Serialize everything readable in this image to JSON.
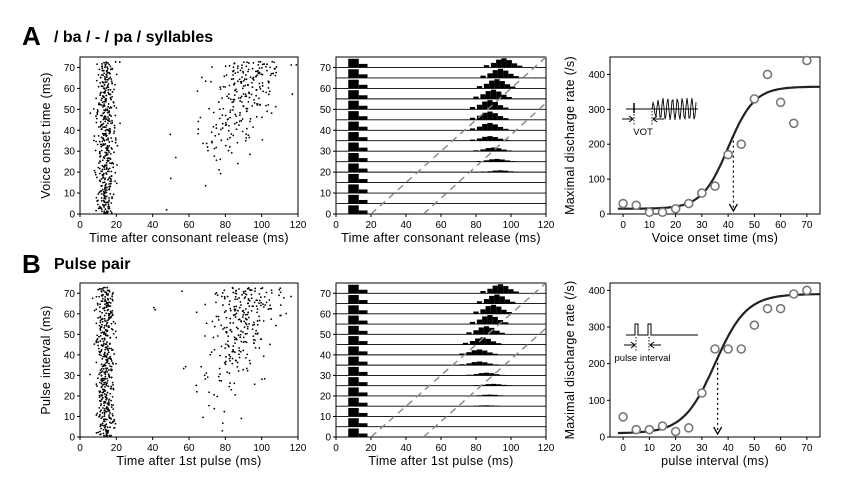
{
  "panels": {
    "A": {
      "letter": "A",
      "title": "/ ba / -  / pa / syllables"
    },
    "B": {
      "letter": "B",
      "title": "Pulse pair"
    }
  },
  "chart_data": [
    {
      "id": "A-raster",
      "type": "scatter",
      "xlabel": "Time after consonant release (ms)",
      "ylabel": "Voice onset time (ms)",
      "xlim": [
        0,
        120
      ],
      "ylim": [
        0,
        75
      ],
      "xticks": [
        0,
        20,
        40,
        60,
        80,
        100,
        120
      ],
      "yticks": [
        0,
        10,
        20,
        30,
        40,
        50,
        60,
        70
      ],
      "onset_cluster_ms": [
        10,
        20
      ],
      "late_response": "points from ~60–110 ms, shifting later as voice onset time increases"
    },
    {
      "id": "A-psth",
      "type": "bar",
      "xlabel": "Time after consonant release (ms)",
      "ylabel": "",
      "xlim": [
        0,
        120
      ],
      "ylim": [
        0,
        75
      ],
      "xticks": [
        0,
        20,
        40,
        60,
        80,
        100,
        120
      ],
      "yticks": [
        0,
        10,
        20,
        30,
        40,
        50,
        60,
        70
      ],
      "rows": [
        0,
        5,
        10,
        15,
        20,
        25,
        30,
        35,
        40,
        45,
        50,
        55,
        60,
        65,
        70
      ],
      "onset_window_ms": [
        7,
        13
      ],
      "late_peak_ms": [
        88,
        90,
        92,
        94,
        94,
        92,
        90,
        88,
        88,
        88,
        88,
        90,
        92,
        94,
        96
      ],
      "late_peak_height": [
        0,
        0,
        0,
        0,
        0.2,
        0.3,
        0.4,
        0.5,
        0.8,
        0.9,
        1.0,
        1.0,
        1.0,
        1.0,
        1.0
      ],
      "dashed_guides": [
        {
          "x": [
            20,
            120
          ],
          "y": [
            0,
            75
          ]
        },
        {
          "x": [
            50,
            120
          ],
          "y": [
            0,
            53
          ]
        }
      ]
    },
    {
      "id": "A-rate",
      "type": "scatter",
      "xlabel": "Voice onset time (ms)",
      "ylabel": "Maximal discharge rate (/s)",
      "xlim": [
        -5,
        75
      ],
      "ylim": [
        0,
        450
      ],
      "xticks": [
        0,
        10,
        20,
        30,
        40,
        50,
        60,
        70
      ],
      "yticks": [
        0,
        100,
        200,
        300,
        400
      ],
      "x": [
        0,
        5,
        10,
        15,
        20,
        25,
        30,
        35,
        40,
        45,
        50,
        55,
        60,
        65,
        70
      ],
      "y": [
        30,
        25,
        5,
        5,
        15,
        30,
        60,
        80,
        170,
        200,
        330,
        400,
        320,
        260,
        440
      ],
      "fit": {
        "kind": "sigmoid",
        "min": 15,
        "max": 365,
        "x50": 40,
        "slope": 5
      },
      "threshold_x": 42,
      "inset_label": "VOT"
    },
    {
      "id": "B-raster",
      "type": "scatter",
      "xlabel": "Time after 1st pulse (ms)",
      "ylabel": "Pulse interval (ms)",
      "xlim": [
        0,
        120
      ],
      "ylim": [
        0,
        75
      ],
      "xticks": [
        0,
        20,
        40,
        60,
        80,
        100,
        120
      ],
      "yticks": [
        0,
        10,
        20,
        30,
        40,
        50,
        60,
        70
      ],
      "onset_cluster_ms": [
        10,
        20
      ],
      "late_response": "points from ~60–110 ms, shifting later as pulse interval increases"
    },
    {
      "id": "B-psth",
      "type": "bar",
      "xlabel": "Time after 1st pulse (ms)",
      "ylabel": "",
      "xlim": [
        0,
        120
      ],
      "ylim": [
        0,
        75
      ],
      "xticks": [
        0,
        20,
        40,
        60,
        80,
        100,
        120
      ],
      "yticks": [
        0,
        10,
        20,
        30,
        40,
        50,
        60,
        70
      ],
      "rows": [
        0,
        5,
        10,
        15,
        20,
        25,
        30,
        35,
        40,
        45,
        50,
        55,
        60,
        65,
        70
      ],
      "onset_window_ms": [
        7,
        13
      ],
      "late_peak_ms": [
        80,
        82,
        84,
        86,
        88,
        90,
        86,
        82,
        82,
        84,
        86,
        88,
        90,
        92,
        94
      ],
      "late_peak_height": [
        0,
        0,
        0,
        0.1,
        0.15,
        0.2,
        0.3,
        0.4,
        0.6,
        0.8,
        0.9,
        1.0,
        1.0,
        1.0,
        1.0
      ],
      "dashed_guides": [
        {
          "x": [
            20,
            120
          ],
          "y": [
            0,
            75
          ]
        },
        {
          "x": [
            50,
            120
          ],
          "y": [
            0,
            53
          ]
        }
      ]
    },
    {
      "id": "B-rate",
      "type": "scatter",
      "xlabel": "pulse interval (ms)",
      "ylabel": "Maximal discharge rate (/s)",
      "xlim": [
        -5,
        75
      ],
      "ylim": [
        0,
        420
      ],
      "xticks": [
        0,
        10,
        20,
        30,
        40,
        50,
        60,
        70
      ],
      "yticks": [
        0,
        100,
        200,
        300,
        400
      ],
      "x": [
        0,
        5,
        10,
        15,
        20,
        25,
        30,
        35,
        40,
        45,
        50,
        55,
        60,
        65,
        70
      ],
      "y": [
        55,
        20,
        20,
        30,
        15,
        25,
        120,
        240,
        240,
        240,
        305,
        350,
        350,
        390,
        400
      ],
      "fit": {
        "kind": "sigmoid",
        "min": 10,
        "max": 390,
        "x50": 35,
        "slope": 6
      },
      "threshold_x": 36,
      "inset_label": "pulse interval"
    }
  ]
}
